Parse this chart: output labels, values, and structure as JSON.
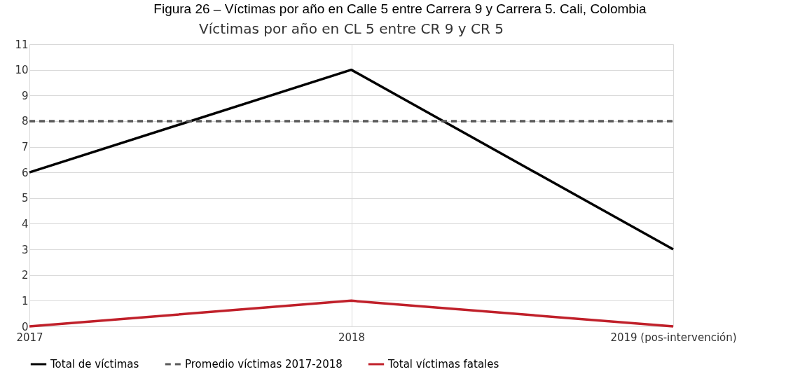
{
  "chart_data": {
    "type": "line",
    "title": "Víctimas por año en CL 5 entre CR 9 y CR 5",
    "annotations": [
      "Figura 26 – Víctimas por año en Calle 5 entre Carrera 9 y Carrera 5. Cali, Colombia"
    ],
    "categories": [
      "2017",
      "2018",
      "2019 (pos-intervención)"
    ],
    "series": [
      {
        "name": "Total de víctimas",
        "color": "#000000",
        "values": [
          6,
          10,
          3
        ]
      },
      {
        "name": "Promedio víctimas 2017-2018",
        "color": "#595959",
        "values": [
          8,
          8,
          8
        ],
        "line_style": "dashed"
      },
      {
        "name": "Total víctimas fatales",
        "color": "#c0202a",
        "values": [
          0,
          1,
          0
        ]
      }
    ],
    "ylim": [
      0,
      11
    ],
    "yticks": [
      0,
      1,
      2,
      3,
      4,
      5,
      6,
      7,
      8,
      9,
      10,
      11
    ],
    "grid": true,
    "legend": "bottom",
    "line_style": "solid"
  }
}
